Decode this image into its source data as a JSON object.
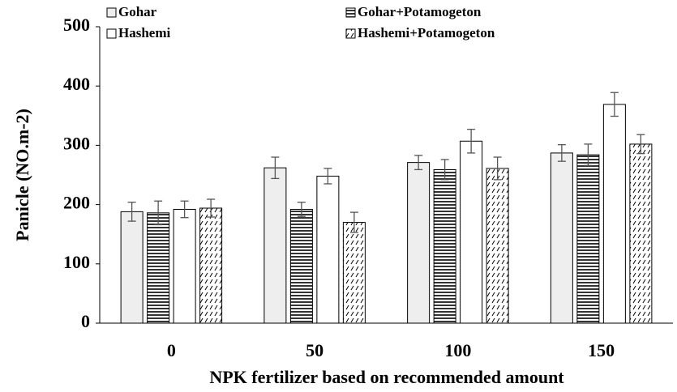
{
  "chart_data": {
    "type": "bar",
    "x_label": "NPK fertilizer based on recommended amount",
    "y_label": "Panicle (NO.m-2)",
    "categories": [
      "0",
      "50",
      "100",
      "150"
    ],
    "series": [
      {
        "name": "Gohar",
        "color": "#eeeeee",
        "pattern": "solid",
        "values": [
          188,
          262,
          271,
          287
        ],
        "errors": [
          16,
          18,
          12,
          14
        ]
      },
      {
        "name": "Gohar+Potamogeton",
        "color": "#ffffff",
        "pattern": "horizontal",
        "values": [
          186,
          192,
          259,
          284
        ],
        "errors": [
          20,
          12,
          17,
          18
        ]
      },
      {
        "name": "Hashemi",
        "color": "#ffffff",
        "pattern": "solid",
        "values": [
          192,
          248,
          307,
          369
        ],
        "errors": [
          14,
          13,
          20,
          20
        ]
      },
      {
        "name": "Hashemi+Potamogeton",
        "color": "#ffffff",
        "pattern": "diagonal",
        "values": [
          194,
          170,
          261,
          302
        ],
        "errors": [
          15,
          17,
          19,
          16
        ]
      }
    ],
    "ylim": [
      0,
      500
    ],
    "yticks": [
      0,
      100,
      200,
      300,
      400,
      500
    ],
    "grid": false
  }
}
